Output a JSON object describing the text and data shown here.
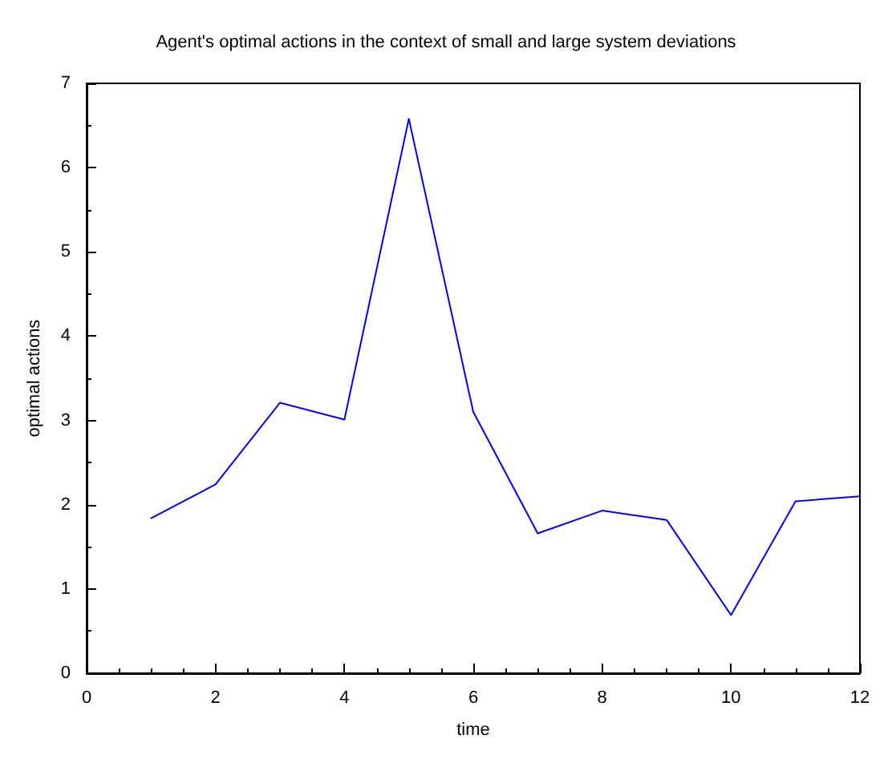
{
  "chart_data": {
    "type": "line",
    "title": "Agent's optimal actions in the context of small and large system deviations",
    "xlabel": "time",
    "ylabel": "optimal actions",
    "x": [
      1,
      2,
      3,
      4,
      5,
      6,
      7,
      8,
      9,
      10,
      11,
      12
    ],
    "series": [
      {
        "color": "#0000ff",
        "values": [
          1.84,
          2.24,
          3.21,
          3.01,
          6.58,
          3.1,
          1.66,
          1.93,
          1.82,
          0.69,
          2.04,
          2.1
        ]
      }
    ],
    "xlim": [
      0,
      12
    ],
    "xticks": [
      0,
      2,
      4,
      6,
      8,
      10,
      12
    ],
    "ylim": [
      0,
      7
    ],
    "yticks": [
      0,
      1,
      2,
      3,
      4,
      5,
      6,
      7
    ],
    "grid": false,
    "marker": "none",
    "line_style": "solid"
  }
}
